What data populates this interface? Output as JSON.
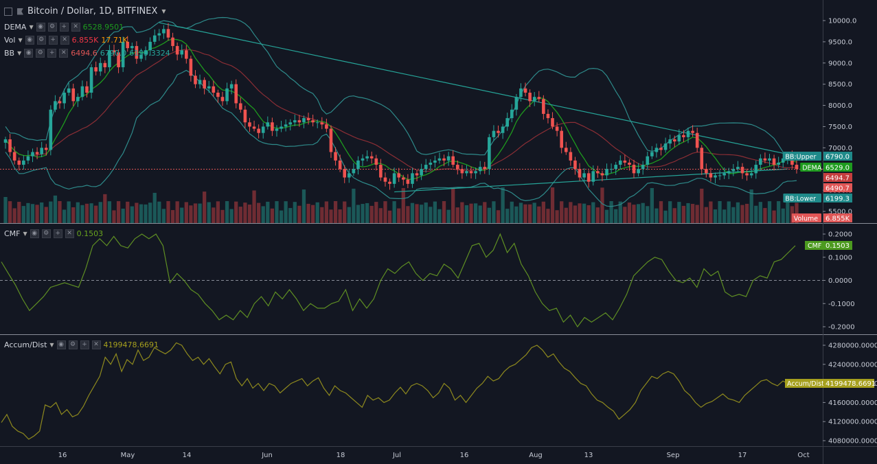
{
  "header": {
    "symbol_title": "Bitcoin / Dollar, 1D, BITFINEX"
  },
  "legend": {
    "dema": {
      "label": "DEMA",
      "value": "6528.9501",
      "color": "#1e9b1e"
    },
    "vol": {
      "label": "Vol",
      "value1": "6.855K",
      "value2": "17.71K",
      "color1": "#f23645",
      "color2": "#ff9800"
    },
    "bb": {
      "label": "BB",
      "value1": "6494.6",
      "value2": "6790.0",
      "value3": "6199.3324",
      "color": "#26a69a"
    }
  },
  "panes": {
    "cmf": {
      "label": "CMF",
      "value": "0.1503",
      "color": "#6aa51e"
    },
    "ad": {
      "label": "Accum/Dist",
      "value": "4199478.6691",
      "color": "#a6a01e"
    }
  },
  "price_badges": [
    {
      "label": "BB:Upper",
      "value": "6790.0",
      "color": "#1f8a8a"
    },
    {
      "label": "DEMA",
      "value": "6529.0",
      "color": "#1e9b1e"
    },
    {
      "label": "",
      "value": "6494.7",
      "color": "#c63e3e"
    },
    {
      "label": "",
      "value": "6490.7",
      "color": "#e05656"
    },
    {
      "label": "BB:Lower",
      "value": "6199.3",
      "color": "#1f8a8a"
    },
    {
      "label": "Volume",
      "value": "6.855K",
      "color": "#e05656"
    }
  ],
  "cmf_badge": {
    "label": "CMF",
    "value": "0.1503"
  },
  "ad_badge": {
    "label": "Accum/Dist",
    "value": "4199478.6691"
  },
  "chart_data": [
    {
      "type": "candlestick",
      "title": "Bitcoin / Dollar, 1D, BITFINEX",
      "x_tick_labels": [
        "16",
        "May",
        "14",
        "Jun",
        "18",
        "Jul",
        "16",
        "Aug",
        "13",
        "Sep",
        "17",
        "Oct"
      ],
      "y_tick_labels": [
        "10000.0",
        "9500.0",
        "9000.0",
        "8500.0",
        "8000.0",
        "7500.0",
        "7000.0",
        "6500.0",
        "6000.0",
        "5500.0"
      ],
      "ylim": [
        5400,
        10300
      ],
      "close": [
        7200,
        6900,
        6700,
        6600,
        6700,
        6800,
        6900,
        6850,
        7000,
        6950,
        7900,
        8100,
        8050,
        8300,
        8400,
        8100,
        8200,
        8450,
        8300,
        8900,
        8800,
        9000,
        8900,
        9300,
        9250,
        8900,
        9500,
        9350,
        9400,
        9100,
        9200,
        9300,
        9500,
        9650,
        9700,
        9800,
        9600,
        9400,
        9200,
        9300,
        9100,
        8700,
        8500,
        8600,
        8400,
        8450,
        8300,
        8200,
        8100,
        8400,
        8500,
        8050,
        7900,
        7600,
        7500,
        7450,
        7350,
        7500,
        7600,
        7400,
        7450,
        7500,
        7550,
        7600,
        7650,
        7600,
        7700,
        7650,
        7600,
        7600,
        7550,
        7450,
        6900,
        6700,
        6500,
        6300,
        6400,
        6500,
        6700,
        6750,
        6800,
        6750,
        6600,
        6300,
        6200,
        6150,
        6400,
        6300,
        6250,
        6150,
        6400,
        6350,
        6500,
        6600,
        6650,
        6700,
        6750,
        6700,
        6800,
        6600,
        6500,
        6400,
        6450,
        6400,
        6450,
        6550,
        6500,
        7250,
        7400,
        7350,
        7500,
        7700,
        7900,
        8200,
        8400,
        8300,
        8100,
        8200,
        8150,
        7800,
        7700,
        7500,
        7400,
        7000,
        6900,
        6700,
        6500,
        6300,
        6400,
        6200,
        6450,
        6400,
        6350,
        6500,
        6500,
        6600,
        6700,
        6650,
        6600,
        6400,
        6500,
        6600,
        6800,
        6900,
        7000,
        6950,
        7100,
        7200,
        7150,
        7300,
        7250,
        7400,
        7350,
        7000,
        6500,
        6400,
        6300,
        6350,
        6350,
        6400,
        6450,
        6500,
        6550,
        6400,
        6350,
        6400,
        6600,
        6750,
        6700,
        6750,
        6600,
        6650,
        6750,
        6800,
        6600,
        6500
      ],
      "series": [
        {
          "name": "DEMA",
          "value": 6528.9501
        },
        {
          "name": "BB Upper",
          "value": 6790.0
        },
        {
          "name": "BB Lower",
          "value": 6199.3324
        }
      ]
    },
    {
      "type": "line",
      "title": "CMF",
      "y_tick_labels": [
        "0.2000",
        "0.1000",
        "0.0000",
        "-0.1000",
        "-0.2000"
      ],
      "ylim": [
        -0.23,
        0.22
      ],
      "values": [
        0.08,
        0.03,
        -0.02,
        -0.08,
        -0.13,
        -0.1,
        -0.07,
        -0.03,
        -0.02,
        -0.01,
        -0.02,
        -0.03,
        0.05,
        0.15,
        0.18,
        0.15,
        0.19,
        0.15,
        0.14,
        0.18,
        0.2,
        0.18,
        0.2,
        0.15,
        -0.01,
        0.03,
        0.0,
        -0.04,
        -0.06,
        -0.1,
        -0.13,
        -0.17,
        -0.15,
        -0.17,
        -0.13,
        -0.16,
        -0.1,
        -0.07,
        -0.11,
        -0.05,
        -0.08,
        -0.04,
        -0.08,
        -0.13,
        -0.1,
        -0.12,
        -0.12,
        -0.1,
        -0.09,
        -0.04,
        -0.13,
        -0.08,
        -0.12,
        -0.08,
        0.0,
        0.05,
        0.03,
        0.06,
        0.08,
        0.03,
        0.0,
        0.03,
        0.02,
        0.07,
        0.05,
        0.01,
        0.08,
        0.15,
        0.16,
        0.1,
        0.13,
        0.2,
        0.12,
        0.16,
        0.07,
        0.02,
        -0.05,
        -0.1,
        -0.13,
        -0.12,
        -0.18,
        -0.15,
        -0.2,
        -0.16,
        -0.18,
        -0.16,
        -0.14,
        -0.17,
        -0.12,
        -0.06,
        0.02,
        0.05,
        0.08,
        0.1,
        0.09,
        0.04,
        0.0,
        -0.01,
        0.01,
        -0.03,
        0.05,
        0.02,
        0.04,
        -0.05,
        -0.07,
        -0.06,
        -0.07,
        0.0,
        0.02,
        0.01,
        0.08,
        0.09,
        0.12,
        0.15
      ],
      "series": [
        {
          "name": "CMF",
          "value": 0.1503
        }
      ]
    },
    {
      "type": "line",
      "title": "Accum/Dist",
      "y_tick_labels": [
        "4280000.0000",
        "4240000.0000",
        "4200000.0000",
        "4160000.0000",
        "4120000.0000",
        "4080000.0000"
      ],
      "ylim": [
        4070000,
        4290000
      ],
      "values": [
        4118000,
        4135000,
        4110000,
        4100000,
        4095000,
        4083000,
        4090000,
        4100000,
        4155000,
        4150000,
        4160000,
        4135000,
        4145000,
        4130000,
        4135000,
        4152000,
        4175000,
        4195000,
        4215000,
        4255000,
        4240000,
        4262000,
        4225000,
        4250000,
        4240000,
        4270000,
        4248000,
        4255000,
        4275000,
        4268000,
        4262000,
        4270000,
        4285000,
        4280000,
        4262000,
        4248000,
        4255000,
        4240000,
        4252000,
        4235000,
        4220000,
        4240000,
        4245000,
        4210000,
        4195000,
        4210000,
        4190000,
        4200000,
        4185000,
        4200000,
        4195000,
        4180000,
        4190000,
        4200000,
        4205000,
        4210000,
        4195000,
        4205000,
        4212000,
        4190000,
        4175000,
        4195000,
        4185000,
        4180000,
        4170000,
        4160000,
        4150000,
        4175000,
        4165000,
        4170000,
        4160000,
        4165000,
        4180000,
        4192000,
        4178000,
        4195000,
        4200000,
        4195000,
        4185000,
        4170000,
        4180000,
        4200000,
        4190000,
        4165000,
        4175000,
        4160000,
        4175000,
        4190000,
        4200000,
        4215000,
        4205000,
        4210000,
        4225000,
        4235000,
        4240000,
        4250000,
        4260000,
        4275000,
        4280000,
        4270000,
        4255000,
        4262000,
        4245000,
        4232000,
        4225000,
        4212000,
        4200000,
        4195000,
        4178000,
        4165000,
        4160000,
        4150000,
        4142000,
        4125000,
        4135000,
        4145000,
        4160000,
        4185000,
        4200000,
        4215000,
        4210000,
        4220000,
        4225000,
        4220000,
        4205000,
        4185000,
        4175000,
        4160000,
        4150000,
        4158000,
        4162000,
        4170000,
        4178000,
        4168000,
        4165000,
        4160000,
        4175000,
        4185000,
        4195000,
        4205000,
        4208000,
        4200000,
        4195000,
        4205000,
        4199478
      ],
      "series": [
        {
          "name": "Accum/Dist",
          "value": 4199478.6691
        }
      ]
    }
  ]
}
